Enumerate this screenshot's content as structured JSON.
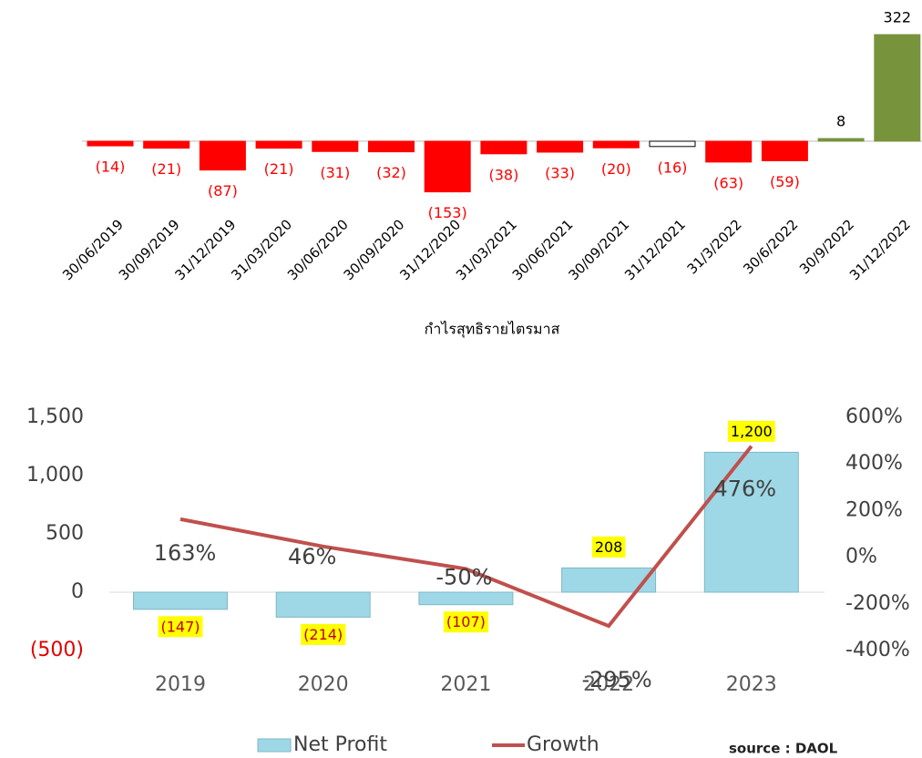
{
  "chart_data": [
    {
      "type": "bar",
      "x_label": "กำไรสุทธิรายไตรมาส",
      "categories": [
        "30/06/2019",
        "30/09/2019",
        "31/12/2019",
        "31/03/2020",
        "30/06/2020",
        "30/09/2020",
        "31/12/2020",
        "31/03/2021",
        "30/06/2021",
        "30/09/2021",
        "31/12/2021",
        "31/3/2022",
        "30/6/2022",
        "30/9/2022",
        "31/12/2022"
      ],
      "values": [
        -14,
        -21,
        -87,
        -21,
        -31,
        -32,
        -153,
        -38,
        -33,
        -20,
        -16,
        -63,
        -59,
        8,
        322
      ],
      "value_labels": [
        "(14)",
        "(21)",
        "(87)",
        "(21)",
        "(31)",
        "(32)",
        "(153)",
        "(38)",
        "(33)",
        "(20)",
        "(16)",
        "(63)",
        "(59)",
        "8",
        "322"
      ],
      "colors": [
        "#ff0000",
        "#ff0000",
        "#ff0000",
        "#ff0000",
        "#ff0000",
        "#ff0000",
        "#ff0000",
        "#ff0000",
        "#ff0000",
        "#ff0000",
        "#ffffff",
        "#ff0000",
        "#ff0000",
        "#77933c",
        "#77933c"
      ]
    },
    {
      "type": "bar_line",
      "categories": [
        "2019",
        "2020",
        "2021",
        "2022",
        "2023"
      ],
      "series": [
        {
          "name": "Net Profit",
          "type": "bar",
          "color": "#9ed8e6",
          "values": [
            -147,
            -214,
            -107,
            208,
            1200
          ],
          "value_labels": [
            "(147)",
            "(214)",
            "(107)",
            "208",
            "1,200"
          ]
        },
        {
          "name": "Growth",
          "type": "line",
          "axis": "y2",
          "color": "#c0504d",
          "values": [
            163,
            46,
            -50,
            -295,
            476
          ],
          "value_labels": [
            "163%",
            "46%",
            "-50%",
            "-295%",
            "476%"
          ]
        }
      ],
      "ylim": [
        -500,
        1500
      ],
      "yticks": [
        {
          "value": -500,
          "label": "(500)"
        },
        0,
        500,
        {
          "value": 1000,
          "label": "1,000"
        },
        {
          "value": 1500,
          "label": "1,500"
        }
      ],
      "y2lim": [
        -400,
        600
      ],
      "y2ticks": [
        {
          "value": -400,
          "label": "-400%"
        },
        {
          "value": -200,
          "label": "-200%"
        },
        {
          "value": 0,
          "label": "0%"
        },
        {
          "value": 200,
          "label": "200%"
        },
        {
          "value": 400,
          "label": "400%"
        },
        {
          "value": 600,
          "label": "600%"
        }
      ],
      "legend": "bottom",
      "source": "source : DAOL"
    }
  ]
}
